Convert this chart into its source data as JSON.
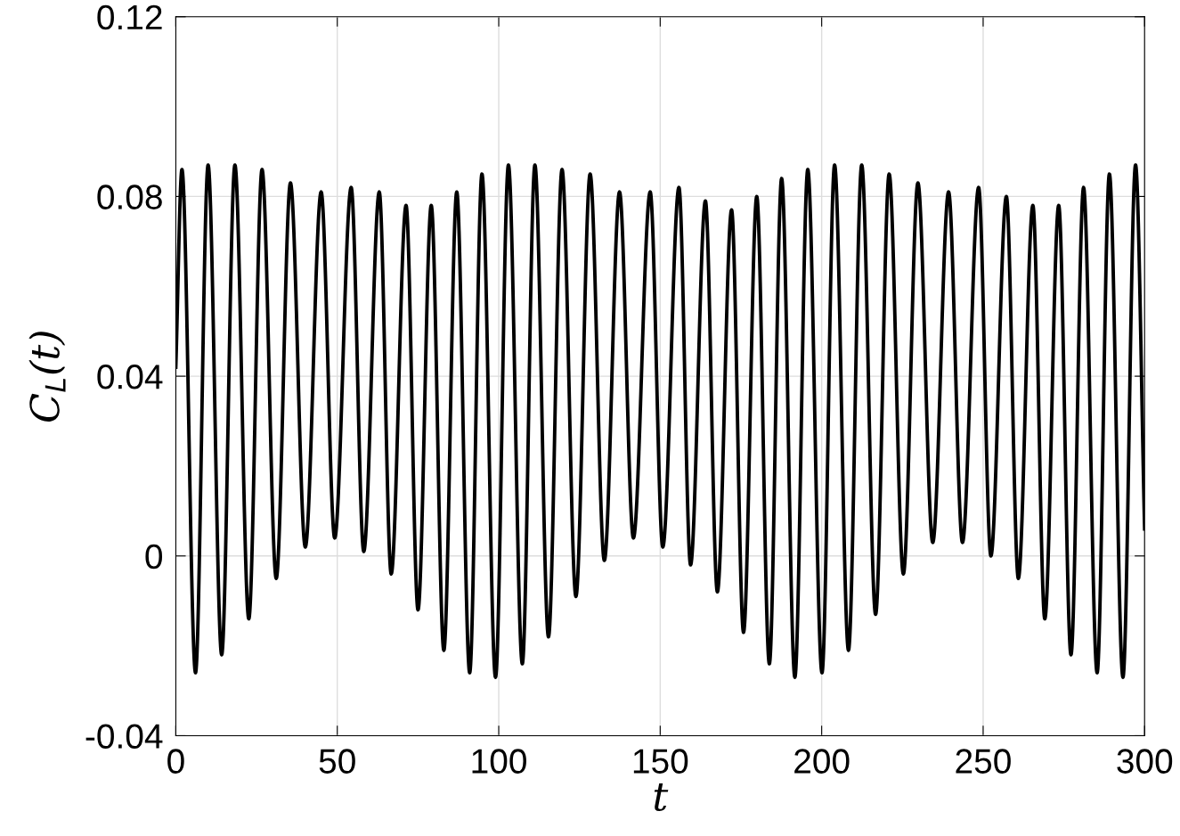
{
  "chart_data": {
    "type": "line",
    "xlabel": "t",
    "ylabel": "C$_{L}$(t)",
    "xlim": [
      0,
      300
    ],
    "xticks": [
      0,
      50,
      100,
      150,
      200,
      250,
      300
    ],
    "ylim": [
      -0.04,
      0.12
    ],
    "yticks": [
      {
        "value": -0.04,
        "label": "-0.04"
      },
      0,
      0.04,
      0.08,
      0.12
    ],
    "grid": true,
    "legend": false,
    "marker": "none",
    "line_style": "solid",
    "series": [
      {
        "color": "#000000",
        "x": [
          0,
          1.9,
          6.1,
          10.0,
          14.2,
          18.3,
          22.6,
          26.7,
          31.1,
          35.5,
          40.1,
          45.0,
          49.2,
          54.3,
          58.2,
          63.0,
          66.7,
          71.3,
          75.0,
          79.1,
          83.0,
          87.0,
          91.0,
          94.8,
          99.0,
          103.0,
          107.3,
          111.2,
          115.4,
          119.6,
          123.9,
          128.3,
          132.7,
          137.4,
          141.7,
          146.9,
          150.8,
          155.8,
          159.4,
          164.0,
          167.7,
          172.1,
          175.8,
          179.9,
          183.8,
          187.6,
          191.7,
          195.7,
          200.1,
          204.0,
          208.3,
          212.4,
          216.7,
          220.9,
          225.3,
          229.8,
          234.4,
          239.3,
          243.6,
          248.6,
          252.4,
          257.2,
          260.9,
          265.4,
          269.1,
          273.4,
          277.2,
          281.1,
          285.3,
          289.1,
          293.3,
          297.2,
          300
        ],
        "values": [
          0.042,
          0.086,
          -0.026,
          0.087,
          -0.022,
          0.087,
          -0.014,
          0.086,
          -0.005,
          0.083,
          0.002,
          0.081,
          0.004,
          0.082,
          0.001,
          0.081,
          -0.004,
          0.078,
          -0.012,
          0.078,
          -0.021,
          0.081,
          -0.026,
          0.085,
          -0.027,
          0.087,
          -0.024,
          0.087,
          -0.018,
          0.086,
          -0.009,
          0.085,
          -0.001,
          0.081,
          0.004,
          0.081,
          0.002,
          0.082,
          -0.002,
          0.079,
          -0.008,
          0.077,
          -0.017,
          0.08,
          -0.024,
          0.084,
          -0.027,
          0.086,
          -0.026,
          0.087,
          -0.021,
          0.087,
          -0.013,
          0.085,
          -0.004,
          0.083,
          0.003,
          0.081,
          0.003,
          0.082,
          0.0,
          0.08,
          -0.005,
          0.078,
          -0.014,
          0.078,
          -0.022,
          0.082,
          -0.026,
          0.085,
          -0.027,
          0.087,
          0.006
        ]
      }
    ]
  }
}
